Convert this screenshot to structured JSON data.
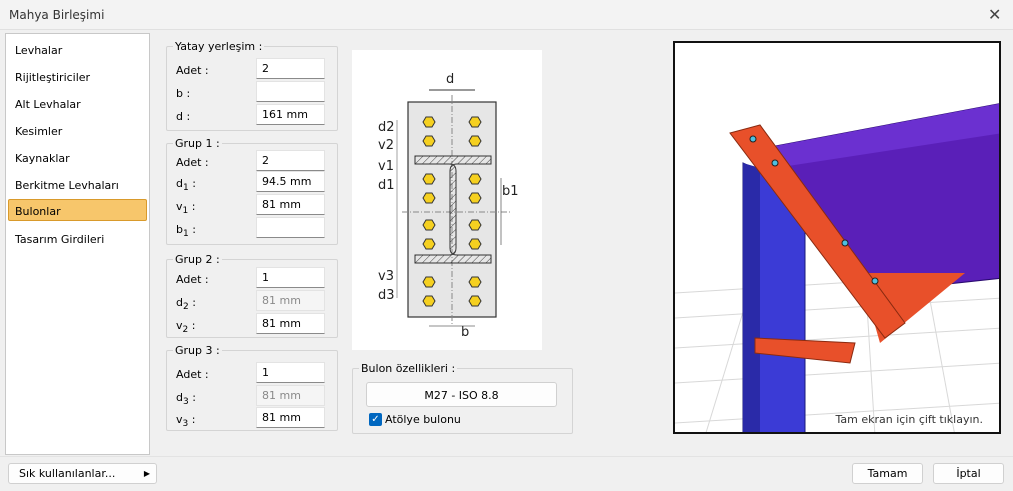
{
  "window": {
    "title": "Mahya Birleşimi",
    "close_icon": "close-icon"
  },
  "sidebar": {
    "items": [
      {
        "label": "Levhalar"
      },
      {
        "label": "Rijitleştiriciler"
      },
      {
        "label": "Alt Levhalar"
      },
      {
        "label": "Kesimler"
      },
      {
        "label": "Kaynaklar"
      },
      {
        "label": "Berkitme Levhaları"
      },
      {
        "label": "Bulonlar",
        "active": true
      },
      {
        "label": "Tasarım Girdileri"
      }
    ]
  },
  "yatay": {
    "legend": "Yatay yerleşim :",
    "adet_label": "Adet :",
    "adet": "2",
    "b_label": "b :",
    "b": "",
    "d_label": "d :",
    "d": "161 mm"
  },
  "grup1": {
    "legend": "Grup 1 :",
    "adet_label": "Adet :",
    "adet": "2",
    "d": "94.5 mm",
    "v": "81 mm",
    "b": "",
    "d_sym": "d",
    "v_sym": "v",
    "b_sym": "b",
    "sub": "1",
    "colon": ":"
  },
  "grup2": {
    "legend": "Grup 2 :",
    "adet_label": "Adet :",
    "adet": "1",
    "d": "81 mm",
    "v": "81 mm",
    "d_sym": "d",
    "v_sym": "v",
    "sub": "2",
    "colon": ":"
  },
  "grup3": {
    "legend": "Grup 3 :",
    "adet_label": "Adet :",
    "adet": "1",
    "d": "81 mm",
    "v": "81 mm",
    "d_sym": "d",
    "v_sym": "v",
    "sub": "3",
    "colon": ":"
  },
  "diagram": {
    "labels": {
      "d": "d",
      "d2": "d2",
      "v2": "v2",
      "v1": "v1",
      "d1": "d1",
      "b1": "b1",
      "v3": "v3",
      "d3": "d3",
      "b": "b"
    }
  },
  "bolt": {
    "legend": "Bulon özellikleri :",
    "type": "M27 - ISO 8.8",
    "workshop_label": "Atölye bulonu",
    "workshop_checked": true
  },
  "view3d": {
    "hint": "Tam ekran için çift tıklayın."
  },
  "footer": {
    "favorites": "Sık kullanılanlar...",
    "ok": "Tamam",
    "cancel": "İptal"
  },
  "colors": {
    "accent": "#f7c66b",
    "column": "#3b3bd6",
    "rafter": "#5a1fb8",
    "plate": "#e8502a",
    "bolt": "#f5d020"
  }
}
